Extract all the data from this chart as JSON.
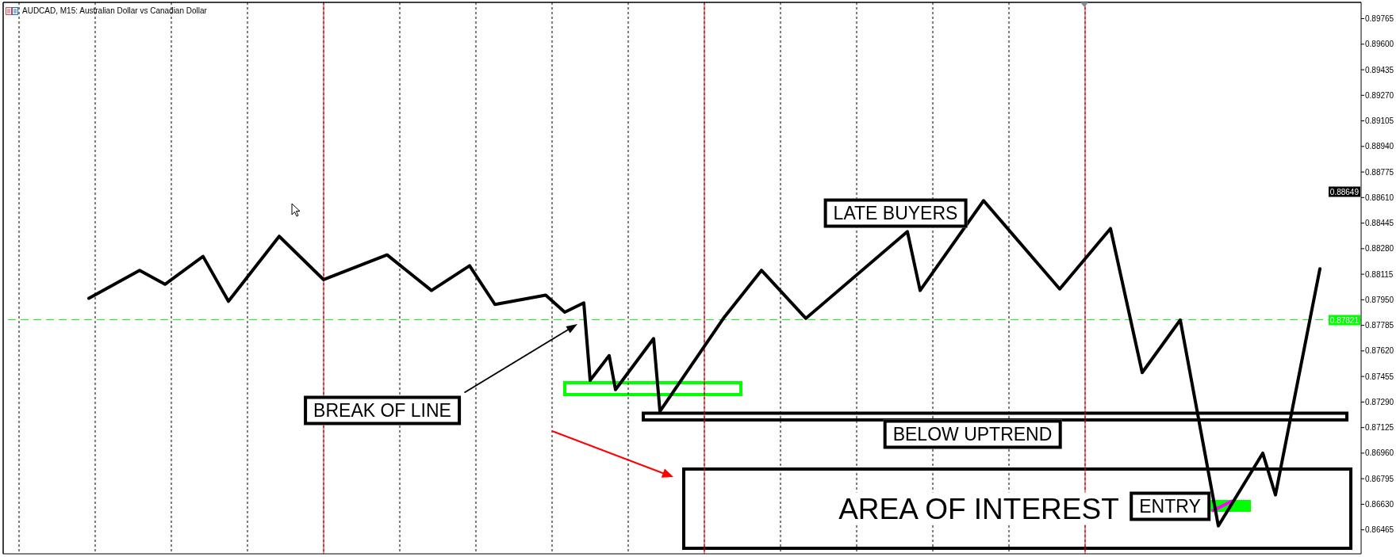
{
  "chart_data": {
    "type": "line",
    "title": "AUDCAD, M15: Australian Dollar vs Canadian Dollar",
    "categories": [
      null,
      null,
      null,
      null,
      null,
      null,
      null,
      null,
      null,
      null,
      null,
      null,
      null,
      null,
      null,
      null,
      null,
      null,
      null,
      null,
      null,
      null,
      null,
      null,
      null,
      null,
      null,
      null,
      null,
      null,
      null,
      null,
      null,
      null,
      null,
      null,
      null,
      null,
      null,
      null,
      null,
      null,
      null,
      null,
      null,
      null,
      null,
      null,
      null,
      null,
      null,
      null,
      null,
      null,
      null,
      null,
      null,
      null,
      null,
      null,
      null,
      null,
      null,
      null,
      null,
      null,
      null,
      null,
      null,
      null,
      null,
      null,
      null,
      null,
      null,
      null,
      null,
      null,
      null,
      null,
      null,
      null,
      null,
      null,
      null,
      null,
      null,
      null,
      null,
      null,
      null,
      null,
      null,
      null,
      null,
      null,
      null,
      null,
      null,
      null,
      null,
      null,
      null,
      null,
      null,
      null,
      null,
      null,
      null,
      null,
      null,
      null,
      null,
      null,
      null,
      null,
      null,
      null,
      null,
      null,
      null,
      null,
      null,
      null,
      null,
      null,
      null,
      null,
      null,
      null,
      null,
      null,
      null,
      null,
      null,
      null,
      null,
      null,
      null,
      null,
      null,
      null,
      null,
      null,
      null,
      null,
      null,
      null,
      null,
      null,
      null,
      null,
      null,
      null,
      null,
      null,
      null,
      null,
      null,
      null,
      null,
      null,
      null,
      null,
      null,
      null,
      null,
      null,
      null,
      null,
      null,
      null,
      null,
      null,
      null,
      null,
      null,
      null,
      null,
      null,
      null,
      null,
      null,
      null,
      null,
      null,
      null,
      null,
      null,
      null,
      null,
      null,
      null,
      null,
      null,
      null,
      null,
      null,
      null,
      null,
      null,
      null,
      null,
      null,
      null,
      null,
      null,
      null,
      null,
      null,
      null,
      null,
      null,
      null
    ],
    "values": [
      null,
      null,
      null,
      null,
      null,
      null,
      null,
      null,
      null,
      null,
      null,
      null,
      null,
      0.8796,
      null,
      null,
      null,
      null,
      null,
      null,
      null,
      0.8814,
      null,
      null,
      null,
      0.8805,
      null,
      null,
      null,
      null,
      null,
      0.8823,
      null,
      null,
      null,
      0.8794,
      null,
      null,
      null,
      null,
      null,
      null,
      null,
      0.8836,
      null,
      null,
      null,
      null,
      null,
      null,
      0.8808,
      null,
      null,
      null,
      null,
      null,
      null,
      null,
      null,
      null,
      0.8824,
      null,
      null,
      null,
      null,
      null,
      null,
      0.8801,
      null,
      null,
      null,
      null,
      null,
      0.8817,
      null,
      null,
      null,
      0.8792,
      null,
      null,
      null,
      null,
      null,
      null,
      null,
      0.8798,
      null,
      null,
      0.8787,
      null,
      null,
      0.8793,
      0.8743,
      null,
      null,
      0.8759,
      0.8737,
      null,
      null,
      null,
      null,
      null,
      0.877,
      0.8723,
      null,
      null,
      null,
      null,
      null,
      null,
      null,
      null,
      null,
      0.8783,
      null,
      null,
      null,
      null,
      null,
      0.8814,
      null,
      null,
      null,
      null,
      null,
      null,
      0.8783,
      null,
      null,
      null,
      null,
      null,
      null,
      null,
      null,
      null,
      null,
      null,
      null,
      null,
      null,
      null,
      0.8839,
      null,
      0.8801,
      null,
      null,
      null,
      null,
      null,
      null,
      null,
      null,
      null,
      0.8859,
      null,
      null,
      null,
      null,
      null,
      null,
      null,
      null,
      null,
      null,
      null,
      0.8802,
      null,
      null,
      null,
      null,
      null,
      null,
      null,
      0.8841,
      null,
      null,
      null,
      null,
      0.8748,
      null,
      null,
      null,
      null,
      null,
      0.8782,
      null,
      null,
      null,
      null,
      null,
      0.8649,
      null,
      null,
      null,
      null,
      null,
      null,
      0.8696,
      null,
      0.8669,
      null,
      null,
      null,
      null,
      null,
      null,
      0.8815,
      null,
      null,
      null,
      null,
      null,
      null
    ],
    "color": "#000000",
    "ylim": [
      0.8631,
      0.8987
    ],
    "yticks": [
      0.89765,
      {
        "value": 0.896,
        "label": "0.89600"
      },
      0.89435,
      {
        "value": 0.8927,
        "label": "0.89270"
      },
      0.89105,
      {
        "value": 0.8894,
        "label": "0.88940"
      },
      0.88775,
      {
        "value": 0.8861,
        "label": "0.88610"
      },
      0.88445,
      {
        "value": 0.8828,
        "label": "0.88280"
      },
      0.88115,
      {
        "value": 0.8795,
        "label": "0.87950"
      },
      0.87785,
      {
        "value": 0.8762,
        "label": "0.87620"
      },
      0.87455,
      {
        "value": 0.8729,
        "label": "0.87290"
      },
      0.87125,
      {
        "value": 0.8696,
        "label": "0.86960"
      },
      0.86795,
      {
        "value": 0.8663,
        "label": "0.86630"
      },
      0.86465
    ],
    "grid": "x",
    "tick_labels": "y",
    "marker": "none",
    "line_style": "solid",
    "ref_lines": [
      {
        "axis": "y",
        "value": 0.87821,
        "label": "0.87821",
        "color": "#00ff00",
        "line_style": "dashed"
      }
    ],
    "annotations": [
      "BREAK OF LINE",
      "LATE BUYERS",
      "BELOW UPTREND",
      "AREA OF INTEREST",
      "ENTRY",
      {
        "text": "0.88649",
        "y": 0.88649
      }
    ]
  }
}
